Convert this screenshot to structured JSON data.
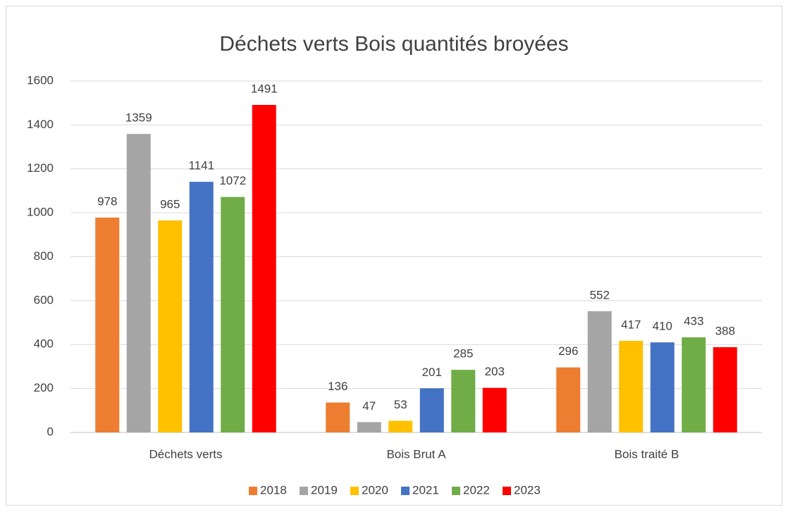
{
  "chart_data": {
    "type": "bar",
    "title": "Déchets verts Bois quantités broyées",
    "categories": [
      "Déchets verts",
      "Bois Brut A",
      "Bois traité B"
    ],
    "series": [
      {
        "name": "2018",
        "color": "#ed7d31",
        "values": [
          978,
          136,
          296
        ]
      },
      {
        "name": "2019",
        "color": "#a5a5a5",
        "values": [
          1359,
          47,
          552
        ]
      },
      {
        "name": "2020",
        "color": "#ffc000",
        "values": [
          965,
          53,
          417
        ]
      },
      {
        "name": "2021",
        "color": "#4472c4",
        "values": [
          1141,
          201,
          410
        ]
      },
      {
        "name": "2022",
        "color": "#70ad47",
        "values": [
          1072,
          285,
          433
        ]
      },
      {
        "name": "2023",
        "color": "#ff0000",
        "values": [
          1491,
          203,
          388
        ]
      }
    ],
    "ylim": [
      0,
      1600
    ],
    "yticks": [
      0,
      200,
      400,
      600,
      800,
      1000,
      1200,
      1400,
      1600
    ],
    "grid": true,
    "legend": "bottom"
  }
}
